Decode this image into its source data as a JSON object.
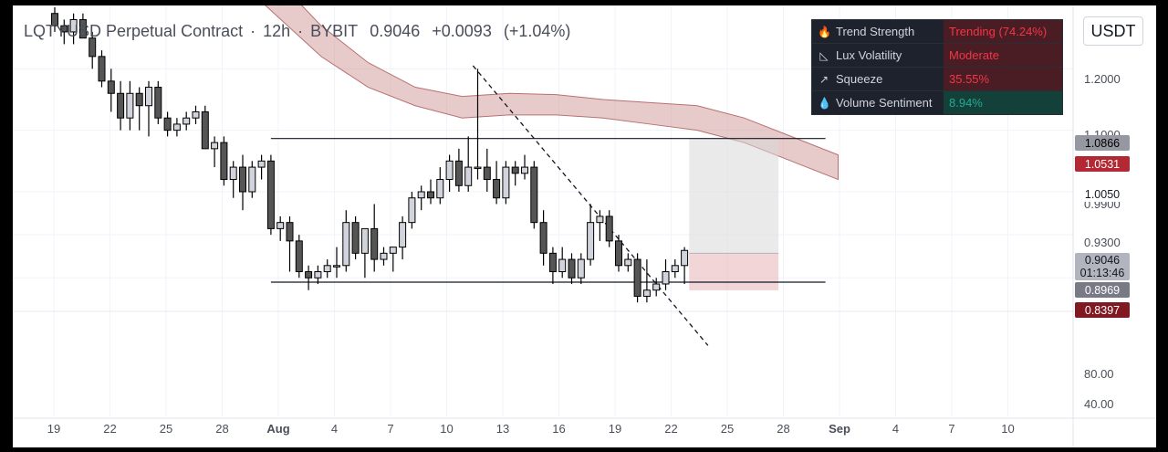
{
  "header": {
    "symbol": "LQTYUSD Perpetual Contract",
    "interval": "12h",
    "exchange": "BYBIT",
    "price": "0.9046",
    "change": "+0.0093",
    "change_pct": "(+1.04%)"
  },
  "currency_button": "USDT",
  "indicators": [
    {
      "name": "Trend Strength",
      "value": "Trending (74.24%)",
      "icon": "fire-icon",
      "value_color": "#f23645",
      "bg": "#4a1c24"
    },
    {
      "name": "Lux Volatility",
      "value": "Moderate",
      "icon": "chart-icon",
      "value_color": "#f23645",
      "bg": "#4a1c24"
    },
    {
      "name": "Squeeze",
      "value": "35.55%",
      "icon": "arrow-up-right-icon",
      "value_color": "#f23645",
      "bg": "#4a1c24"
    },
    {
      "name": "Volume Sentiment",
      "value": "8.94%",
      "icon": "droplet-icon",
      "value_color": "#22ab94",
      "bg": "#14403a"
    }
  ],
  "price_axis": {
    "ticks": [
      "1.2000",
      "1.1000",
      "1.0050",
      "0.9900",
      "0.9300",
      "0.8969",
      "0.8397"
    ],
    "tags": [
      {
        "value": "1.0866",
        "bg": "#9598a1",
        "color": "#000000"
      },
      {
        "value": "1.0531",
        "bg": "#b22833",
        "color": "#ffffff"
      },
      {
        "value": "1.0050",
        "bg": "#ffffff",
        "color": "#131722"
      },
      {
        "value": "0.9046",
        "sub": "01:13:46",
        "bg": "#b2b5be",
        "color": "#131722"
      },
      {
        "value": "0.8969",
        "bg": "#787b86",
        "color": "#ffffff"
      },
      {
        "value": "0.8397",
        "bg": "#801922",
        "color": "#ffffff"
      }
    ],
    "lower_ticks": [
      "80.00",
      "40.00"
    ]
  },
  "time_axis": [
    "19",
    "22",
    "25",
    "28",
    "Aug",
    "4",
    "7",
    "10",
    "13",
    "16",
    "19",
    "22",
    "25",
    "28",
    "Sep",
    "4",
    "7",
    "10"
  ],
  "colors": {
    "up": "#d1d4dc",
    "down": "#555555",
    "wick": "#000000",
    "band": "#c98b8b"
  },
  "chart_data": {
    "type": "candlestick",
    "title": "LQTYUSD Perpetual Contract · 12h · BYBIT",
    "x_start_date": "Jul 18",
    "interval_hours": 12,
    "ohlc": [
      [
        1.29,
        1.3,
        1.26,
        1.27
      ],
      [
        1.27,
        1.28,
        1.24,
        1.26
      ],
      [
        1.26,
        1.29,
        1.24,
        1.28
      ],
      [
        1.28,
        1.29,
        1.25,
        1.25
      ],
      [
        1.25,
        1.26,
        1.2,
        1.22
      ],
      [
        1.22,
        1.23,
        1.17,
        1.18
      ],
      [
        1.18,
        1.2,
        1.13,
        1.16
      ],
      [
        1.16,
        1.18,
        1.1,
        1.12
      ],
      [
        1.12,
        1.18,
        1.1,
        1.16
      ],
      [
        1.16,
        1.17,
        1.1,
        1.14
      ],
      [
        1.14,
        1.18,
        1.09,
        1.17
      ],
      [
        1.17,
        1.18,
        1.11,
        1.12
      ],
      [
        1.12,
        1.13,
        1.09,
        1.1
      ],
      [
        1.1,
        1.12,
        1.09,
        1.11
      ],
      [
        1.11,
        1.13,
        1.1,
        1.12
      ],
      [
        1.12,
        1.14,
        1.11,
        1.13
      ],
      [
        1.13,
        1.14,
        1.07,
        1.07
      ],
      [
        1.07,
        1.09,
        1.04,
        1.08
      ],
      [
        1.08,
        1.09,
        1.01,
        1.02
      ],
      [
        1.02,
        1.05,
        0.99,
        1.04
      ],
      [
        1.04,
        1.06,
        0.97,
        1.0
      ],
      [
        1.0,
        1.05,
        0.99,
        1.04
      ],
      [
        1.04,
        1.06,
        1.02,
        1.05
      ],
      [
        1.05,
        1.06,
        0.93,
        0.94
      ],
      [
        0.94,
        0.96,
        0.92,
        0.95
      ],
      [
        0.95,
        0.96,
        0.87,
        0.92
      ],
      [
        0.92,
        0.93,
        0.86,
        0.87
      ],
      [
        0.87,
        0.88,
        0.84,
        0.86
      ],
      [
        0.86,
        0.88,
        0.85,
        0.87
      ],
      [
        0.87,
        0.89,
        0.86,
        0.88
      ],
      [
        0.88,
        0.91,
        0.86,
        0.88
      ],
      [
        0.88,
        0.97,
        0.87,
        0.95
      ],
      [
        0.95,
        0.96,
        0.89,
        0.9
      ],
      [
        0.9,
        0.94,
        0.86,
        0.94
      ],
      [
        0.94,
        0.98,
        0.87,
        0.89
      ],
      [
        0.89,
        0.91,
        0.88,
        0.9
      ],
      [
        0.9,
        0.91,
        0.87,
        0.91
      ],
      [
        0.91,
        0.96,
        0.89,
        0.95
      ],
      [
        0.95,
        1.0,
        0.94,
        0.99
      ],
      [
        0.99,
        1.01,
        0.97,
        1.0
      ],
      [
        1.0,
        1.02,
        0.98,
        0.99
      ],
      [
        0.99,
        1.04,
        0.98,
        1.02
      ],
      [
        1.02,
        1.06,
        1.0,
        1.05
      ],
      [
        1.05,
        1.07,
        1.0,
        1.01
      ],
      [
        1.01,
        1.09,
        1.0,
        1.04
      ],
      [
        1.04,
        1.2,
        1.02,
        1.04
      ],
      [
        1.04,
        1.07,
        1.0,
        1.02
      ],
      [
        1.02,
        1.05,
        0.98,
        0.99
      ],
      [
        0.99,
        1.05,
        0.98,
        1.04
      ],
      [
        1.04,
        1.05,
        1.01,
        1.03
      ],
      [
        1.03,
        1.06,
        1.02,
        1.04
      ],
      [
        1.04,
        1.05,
        0.94,
        0.95
      ],
      [
        0.95,
        0.97,
        0.88,
        0.9
      ],
      [
        0.9,
        0.91,
        0.85,
        0.87
      ],
      [
        0.87,
        0.91,
        0.86,
        0.89
      ],
      [
        0.89,
        0.9,
        0.85,
        0.86
      ],
      [
        0.86,
        0.9,
        0.85,
        0.89
      ],
      [
        0.89,
        0.98,
        0.88,
        0.95
      ],
      [
        0.95,
        0.97,
        0.92,
        0.96
      ],
      [
        0.96,
        0.97,
        0.91,
        0.92
      ],
      [
        0.92,
        0.93,
        0.87,
        0.88
      ],
      [
        0.88,
        0.9,
        0.87,
        0.89
      ],
      [
        0.89,
        0.9,
        0.82,
        0.83
      ],
      [
        0.83,
        0.89,
        0.82,
        0.84
      ],
      [
        0.84,
        0.86,
        0.83,
        0.85
      ],
      [
        0.85,
        0.89,
        0.84,
        0.87
      ],
      [
        0.87,
        0.89,
        0.86,
        0.88
      ],
      [
        0.88,
        0.91,
        0.85,
        0.9046
      ]
    ],
    "ema_band": {
      "upper": [
        1.43,
        1.35,
        1.27,
        1.21,
        1.17,
        1.155,
        1.16,
        1.158,
        1.15,
        1.145,
        1.14,
        1.12,
        1.09,
        1.06
      ],
      "lower": [
        1.36,
        1.29,
        1.22,
        1.17,
        1.14,
        1.12,
        1.125,
        1.125,
        1.12,
        1.11,
        1.1,
        1.08,
        1.05,
        1.02
      ],
      "step_bars": 5
    },
    "horizontal_levels": [
      {
        "price": 1.0866,
        "from_bar": 23,
        "to_bar": 82
      },
      {
        "price": 0.853,
        "from_bar": 23,
        "to_bar": 82
      }
    ],
    "trendline": {
      "from_bar": 44.5,
      "from_price": 1.205,
      "to_bar": 69.5,
      "to_price": 0.75,
      "style": "dashed"
    },
    "position_box": {
      "from_bar": 67.5,
      "to_bar": 77,
      "target": 1.0866,
      "entry": 0.9,
      "stop": 0.8397
    },
    "ylim": [
      0.7,
      1.3
    ]
  }
}
